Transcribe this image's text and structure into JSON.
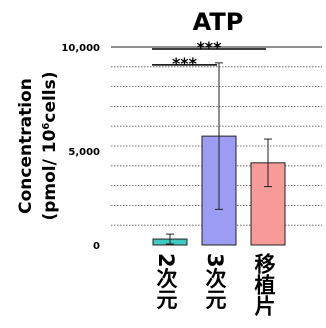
{
  "chart_data": {
    "type": "bar",
    "title": "ATP",
    "ylabel_line1": "Concentration",
    "ylabel_line2_prefix": "(pmol/ 10",
    "ylabel_line2_sup": "6",
    "ylabel_line2_suffix": "cells)",
    "categories": [
      "2次元",
      "3次元",
      "移植片"
    ],
    "values": [
      300,
      5500,
      4150
    ],
    "errors": [
      250,
      3700,
      1200
    ],
    "colors": [
      "#3fc9c0",
      "#9c9cf3",
      "#f79a9a"
    ],
    "ylim": [
      0,
      10000
    ],
    "yticks": [
      0,
      5000,
      10000
    ],
    "ytick_labels": [
      "0",
      "5,000",
      "10,000"
    ],
    "grid": "dotted horizontal",
    "significance": [
      {
        "label": "***",
        "from": 0,
        "to": 1,
        "level": 9100
      },
      {
        "label": "***",
        "from": 0,
        "to": 2,
        "level": 9900
      }
    ]
  }
}
